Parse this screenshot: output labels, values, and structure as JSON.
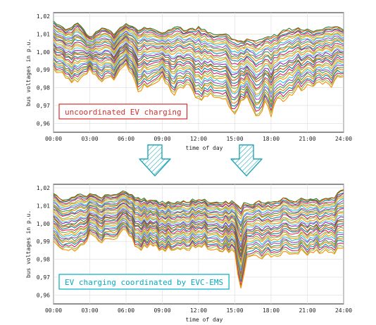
{
  "chart_data": [
    {
      "type": "line",
      "annotation": "uncoordinated EV charging",
      "xlabel": "time of day",
      "ylabel": "bus voltages in p.u.",
      "x_ticks": [
        "00:00",
        "03:00",
        "06:00",
        "09:00",
        "12:00",
        "15:00",
        "18:00",
        "21:00",
        "24:00"
      ],
      "y_ticks": [
        "0,96",
        "0,97",
        "0,98",
        "0,99",
        "1,00",
        "1,01",
        "1,02"
      ],
      "ylim": [
        0.955,
        1.022
      ],
      "xlim": [
        0,
        24
      ],
      "grid": true,
      "series_count": 30,
      "upper_envelope": [
        [
          0,
          1.017
        ],
        [
          1,
          1.012
        ],
        [
          2,
          1.016
        ],
        [
          3,
          1.008
        ],
        [
          4,
          1.014
        ],
        [
          5,
          1.01
        ],
        [
          6,
          1.016
        ],
        [
          7,
          1.012
        ],
        [
          8,
          1.014
        ],
        [
          9,
          1.01
        ],
        [
          10,
          1.014
        ],
        [
          11,
          1.012
        ],
        [
          12,
          1.014
        ],
        [
          13,
          1.01
        ],
        [
          14,
          1.01
        ],
        [
          15,
          1.008
        ],
        [
          15.5,
          1.006
        ],
        [
          16,
          1.008
        ],
        [
          16.5,
          1.007
        ],
        [
          17,
          1.006
        ],
        [
          17.5,
          1.008
        ],
        [
          18,
          1.008
        ],
        [
          18.5,
          1.01
        ],
        [
          19,
          1.012
        ],
        [
          20,
          1.013
        ],
        [
          21,
          1.012
        ],
        [
          22,
          1.012
        ],
        [
          23,
          1.014
        ],
        [
          24,
          1.013
        ]
      ],
      "lower_envelope": [
        [
          0,
          0.99
        ],
        [
          0.5,
          0.988
        ],
        [
          1,
          0.985
        ],
        [
          2,
          0.982
        ],
        [
          3,
          0.99
        ],
        [
          4,
          0.984
        ],
        [
          5,
          0.985
        ],
        [
          6,
          0.994
        ],
        [
          7,
          0.978
        ],
        [
          8,
          0.982
        ],
        [
          9,
          0.985
        ],
        [
          10,
          0.976
        ],
        [
          11,
          0.982
        ],
        [
          12,
          0.973
        ],
        [
          13,
          0.976
        ],
        [
          14,
          0.974
        ],
        [
          15,
          0.966
        ],
        [
          15.5,
          0.972
        ],
        [
          16,
          0.976
        ],
        [
          16.5,
          0.968
        ],
        [
          17,
          0.962
        ],
        [
          17.5,
          0.972
        ],
        [
          18,
          0.963
        ],
        [
          18.5,
          0.975
        ],
        [
          19,
          0.972
        ],
        [
          20,
          0.978
        ],
        [
          21,
          0.98
        ],
        [
          22,
          0.983
        ],
        [
          23,
          0.981
        ],
        [
          24,
          0.987
        ]
      ]
    },
    {
      "type": "line",
      "annotation": "EV charging coordinated by EVC-EMS",
      "xlabel": "time of day",
      "ylabel": "bus voltages in p.u.",
      "x_ticks": [
        "00:00",
        "03:00",
        "06:00",
        "09:00",
        "12:00",
        "15:00",
        "18:00",
        "21:00",
        "24:00"
      ],
      "y_ticks": [
        "0,96",
        "0,97",
        "0,98",
        "0,99",
        "1,00",
        "1,01",
        "1,02"
      ],
      "ylim": [
        0.955,
        1.022
      ],
      "xlim": [
        0,
        24
      ],
      "grid": true,
      "series_count": 30,
      "upper_envelope": [
        [
          0,
          1.017
        ],
        [
          1,
          1.013
        ],
        [
          2,
          1.016
        ],
        [
          3,
          1.016
        ],
        [
          4,
          1.015
        ],
        [
          5,
          1.016
        ],
        [
          6,
          1.018
        ],
        [
          7,
          1.014
        ],
        [
          8,
          1.013
        ],
        [
          9,
          1.012
        ],
        [
          10,
          1.012
        ],
        [
          11,
          1.012
        ],
        [
          12,
          1.014
        ],
        [
          13,
          1.012
        ],
        [
          14,
          1.012
        ],
        [
          15,
          1.012
        ],
        [
          15.5,
          1.01
        ],
        [
          16,
          1.012
        ],
        [
          16.5,
          1.011
        ],
        [
          17,
          1.012
        ],
        [
          17.5,
          1.012
        ],
        [
          18,
          1.012
        ],
        [
          19,
          1.014
        ],
        [
          20,
          1.013
        ],
        [
          21,
          1.014
        ],
        [
          22,
          1.013
        ],
        [
          23,
          1.014
        ],
        [
          24,
          1.019
        ]
      ],
      "lower_envelope": [
        [
          0,
          0.99
        ],
        [
          1,
          0.985
        ],
        [
          2,
          0.985
        ],
        [
          3,
          0.993
        ],
        [
          4,
          0.99
        ],
        [
          5,
          0.991
        ],
        [
          6,
          0.997
        ],
        [
          7,
          0.985
        ],
        [
          8,
          0.988
        ],
        [
          9,
          0.985
        ],
        [
          10,
          0.986
        ],
        [
          11,
          0.985
        ],
        [
          12,
          0.988
        ],
        [
          13,
          0.986
        ],
        [
          14,
          0.985
        ],
        [
          15,
          0.984
        ],
        [
          15.3,
          0.97
        ],
        [
          15.6,
          0.962
        ],
        [
          16,
          0.982
        ],
        [
          16.5,
          0.983
        ],
        [
          17,
          0.979
        ],
        [
          17.5,
          0.983
        ],
        [
          18,
          0.982
        ],
        [
          19,
          0.983
        ],
        [
          20,
          0.984
        ],
        [
          21,
          0.983
        ],
        [
          22,
          0.984
        ],
        [
          23,
          0.983
        ],
        [
          24,
          0.986
        ]
      ]
    }
  ],
  "colors": [
    "#2e7d32",
    "#e65100",
    "#00838f",
    "#e91e63",
    "#7cb342",
    "#ff9800",
    "#26c6da",
    "#ab47bc",
    "#43a047",
    "#f57c00",
    "#0097a7",
    "#d81b60",
    "#8bc34a",
    "#fb8c00",
    "#4dd0e1",
    "#9c27b0"
  ],
  "annotation_colors": {
    "top": "#d32f2f",
    "bottom": "#00acc1"
  },
  "arrow_color": "#26a6b8"
}
